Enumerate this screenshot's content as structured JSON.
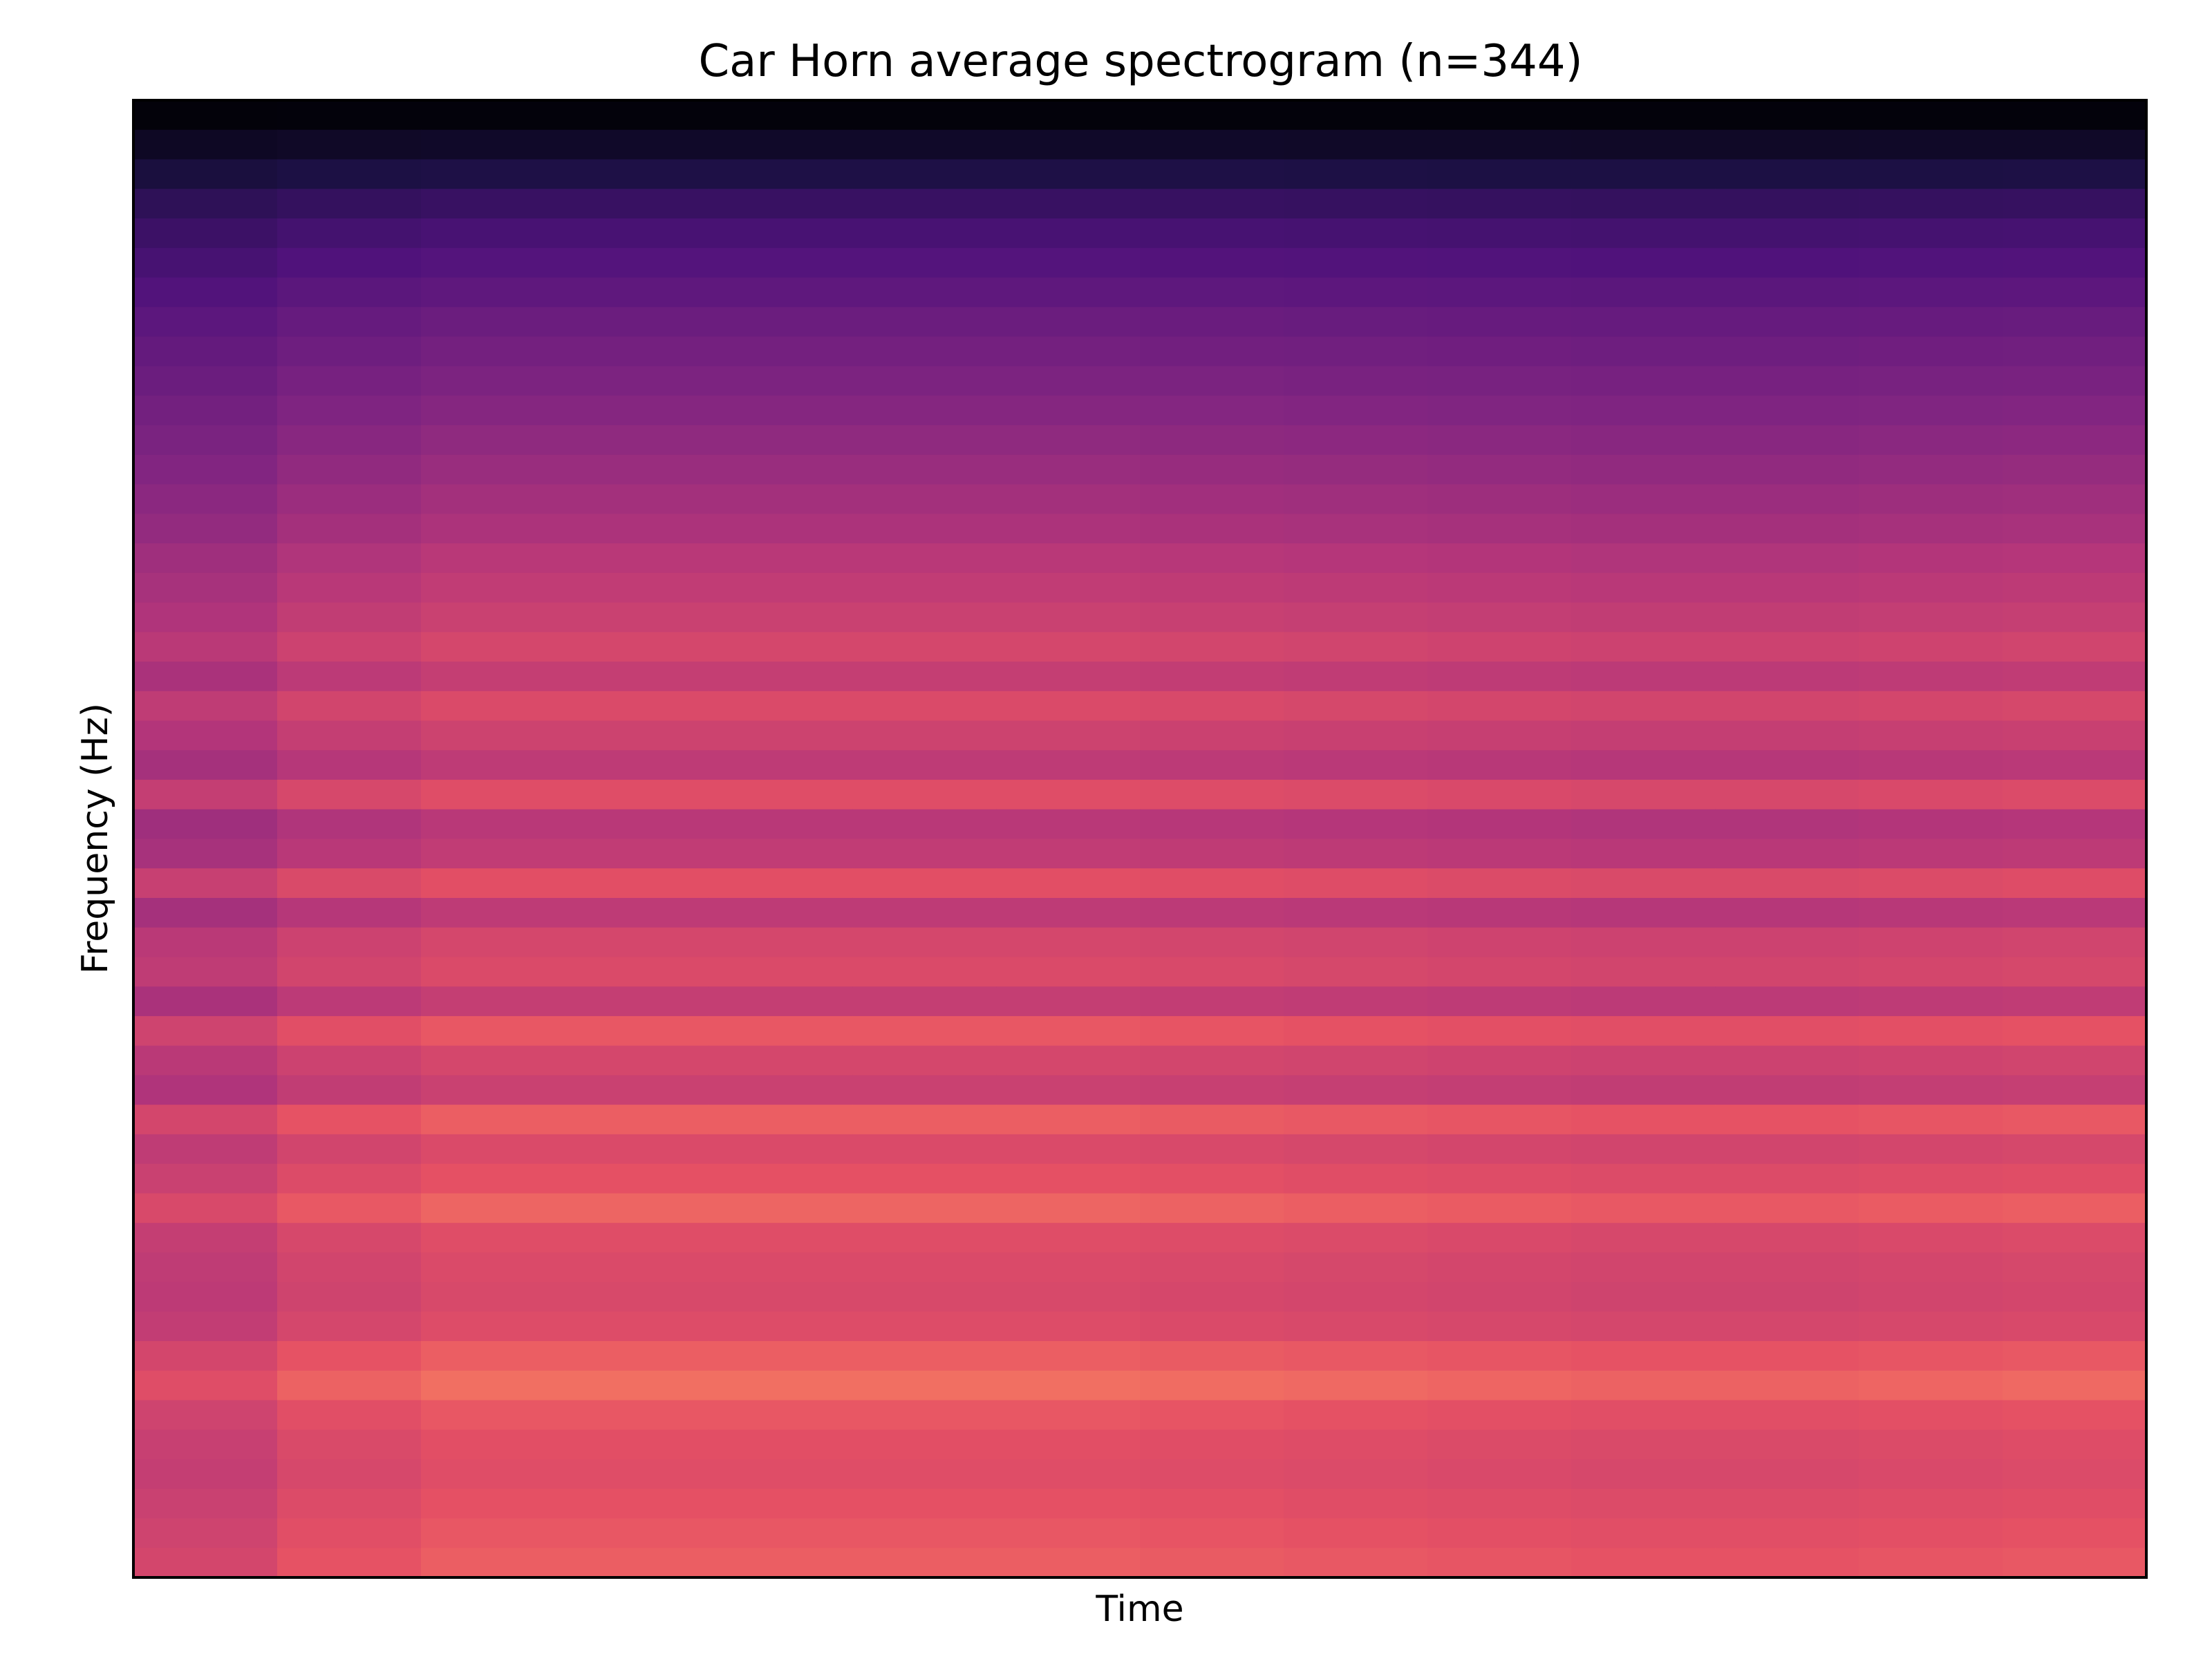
{
  "chart_data": {
    "type": "heatmap",
    "title": "Car Horn average spectrogram (n=344)",
    "xlabel": "Time",
    "ylabel": "Frequency (Hz)",
    "colormap": "magma",
    "grid": false,
    "legend": "none",
    "xticks": [],
    "yticks": [],
    "value_range": [
      0,
      1
    ],
    "rows_top_to_bottom": [
      0.02,
      0.1,
      0.18,
      0.26,
      0.31,
      0.35,
      0.39,
      0.43,
      0.46,
      0.49,
      0.52,
      0.55,
      0.58,
      0.61,
      0.64,
      0.68,
      0.71,
      0.74,
      0.78,
      0.72,
      0.8,
      0.75,
      0.7,
      0.82,
      0.68,
      0.71,
      0.83,
      0.7,
      0.78,
      0.8,
      0.72,
      0.86,
      0.78,
      0.74,
      0.88,
      0.8,
      0.84,
      0.9,
      0.82,
      0.8,
      0.79,
      0.81,
      0.88,
      0.93,
      0.86,
      0.83,
      0.82,
      0.84,
      0.86,
      0.88
    ],
    "column_profile": [
      0.88,
      0.96,
      1.0,
      1.0,
      1.0,
      1.0,
      1.0,
      0.99,
      0.98,
      0.97,
      0.96,
      0.96,
      0.97,
      0.98
    ]
  }
}
